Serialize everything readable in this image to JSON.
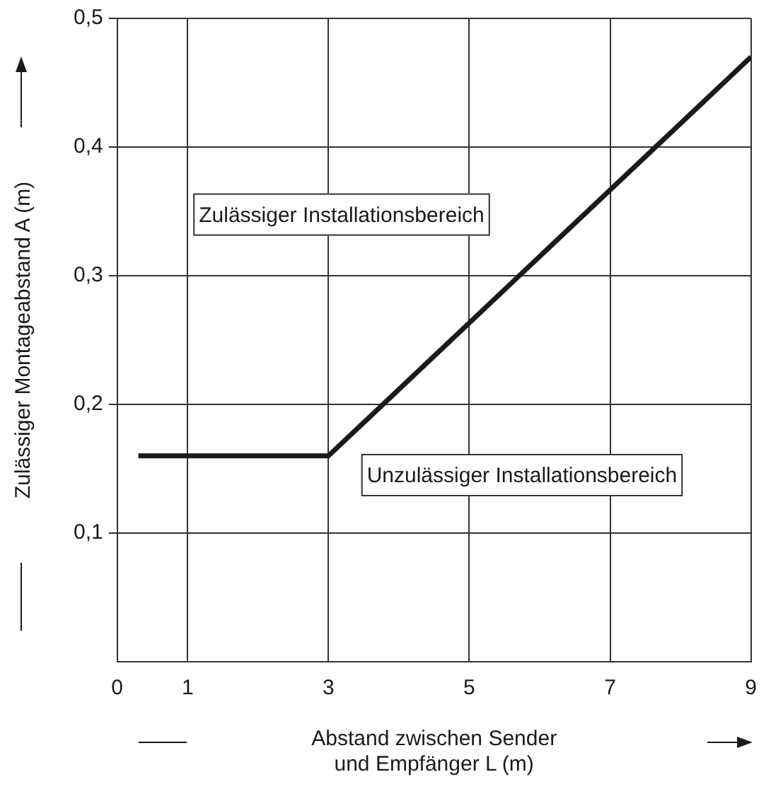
{
  "chart_data": {
    "type": "line",
    "xlabel": "Abstand zwischen Sender\nund Empfänger L (m)",
    "ylabel": "Zulässiger Montageabstand A (m)",
    "x": [
      0.3,
      3,
      9
    ],
    "series": [
      {
        "color": "#1a1a1a",
        "values": [
          0.16,
          0.16,
          0.47
        ]
      }
    ],
    "xlim": [
      0,
      9
    ],
    "xticks": [
      0,
      1,
      3,
      5,
      7,
      9
    ],
    "ylim": [
      0,
      0.5
    ],
    "yticks": [
      {
        "value": 0.1,
        "label": "0,1"
      },
      {
        "value": 0.2,
        "label": "0,2"
      },
      {
        "value": 0.3,
        "label": "0,3"
      },
      {
        "value": 0.4,
        "label": "0,4"
      },
      {
        "value": 0.5,
        "label": "0,5"
      }
    ],
    "annotations": [
      "Zulässiger Installationsbereich",
      "Unzulässiger Installationsbereich"
    ],
    "grid": true,
    "legend": false,
    "marker": "none",
    "line_style": "solid"
  }
}
